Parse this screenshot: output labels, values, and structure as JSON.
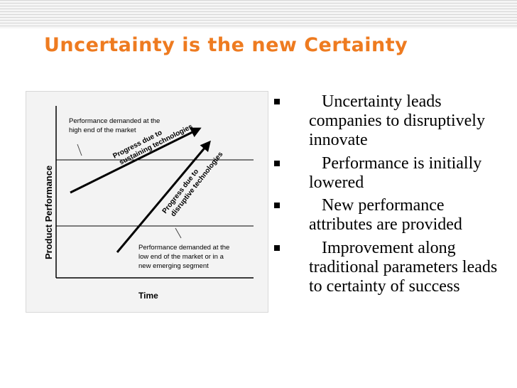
{
  "slide": {
    "title": "Uncertainty is the new Certainty"
  },
  "diagram": {
    "y_axis_label": "Product Performance",
    "x_axis_label": "Time",
    "label_high_end": [
      "Performance demanded at the",
      "high end of the market"
    ],
    "label_sustaining": [
      "Progress due to",
      "sustaining technologies"
    ],
    "label_disruptive": [
      "Progress due to",
      "disruptive technologies"
    ],
    "label_low_end": [
      "Performance demanded at the",
      "low end of the market or in a",
      "new emerging segment"
    ]
  },
  "bullets": [
    "Uncertainty leads companies to disruptively innovate",
    "Performance is initially lowered",
    "New performance attributes are provided",
    "Improvement along traditional parameters leads to certainty of success"
  ]
}
